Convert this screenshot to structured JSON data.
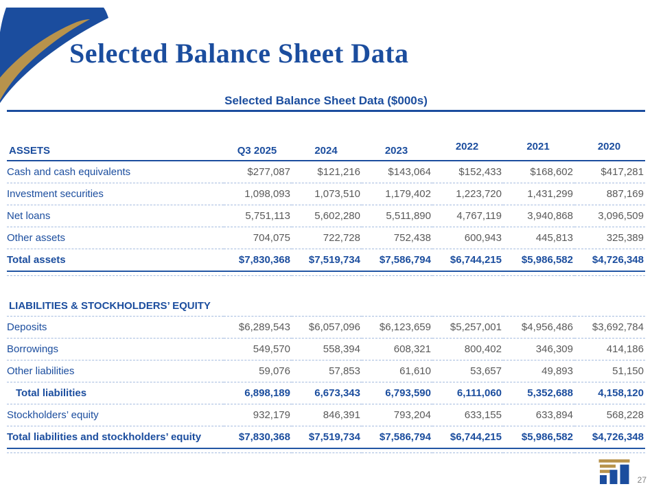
{
  "title": "Selected Balance Sheet Data",
  "page_number": "27",
  "colors": {
    "primary_blue": "#1B4D9E",
    "gold": "#B8934C",
    "value_gray": "#595959",
    "dashed_rule": "#A4BBDF"
  },
  "icons": {
    "corner_decoration": "swoosh-ribbon",
    "logo": "bar-chart-columns-logo"
  },
  "table": {
    "caption": "Selected Balance Sheet Data ($000s)",
    "columns": [
      "Q3 2025",
      "2024",
      "2023",
      "2022",
      "2021",
      "2020"
    ],
    "sections": [
      {
        "name": "ASSETS",
        "rows": [
          {
            "label": "Cash and cash equivalents",
            "values": [
              "$277,087",
              "$121,216",
              "$143,064",
              "$152,433",
              "$168,602",
              "$417,281"
            ]
          },
          {
            "label": "Investment securities",
            "values": [
              "1,098,093",
              "1,073,510",
              "1,179,402",
              "1,223,720",
              "1,431,299",
              "887,169"
            ]
          },
          {
            "label": "Net loans",
            "values": [
              "5,751,113",
              "5,602,280",
              "5,511,890",
              "4,767,119",
              "3,940,868",
              "3,096,509"
            ]
          },
          {
            "label": "Other assets",
            "values": [
              "704,075",
              "722,728",
              "752,438",
              "600,943",
              "445,813",
              "325,389"
            ]
          },
          {
            "label": "Total assets",
            "values": [
              "$7,830,368",
              "$7,519,734",
              "$7,586,794",
              "$6,744,215",
              "$5,986,582",
              "$4,726,348"
            ],
            "total": true,
            "grand": true
          }
        ]
      },
      {
        "name": "LIABILITIES & STOCKHOLDERS’ EQUITY",
        "rows": [
          {
            "label": "Deposits",
            "values": [
              "$6,289,543",
              "$6,057,096",
              "$6,123,659",
              "$5,257,001",
              "$4,956,486",
              "$3,692,784"
            ]
          },
          {
            "label": "Borrowings",
            "values": [
              "549,570",
              "558,394",
              "608,321",
              "800,402",
              "346,309",
              "414,186"
            ]
          },
          {
            "label": "Other liabilities",
            "values": [
              "59,076",
              "57,853",
              "61,610",
              "53,657",
              "49,893",
              "51,150"
            ]
          },
          {
            "label": "Total liabilities",
            "values": [
              "6,898,189",
              "6,673,343",
              "6,793,590",
              "6,111,060",
              "5,352,688",
              "4,158,120"
            ],
            "total": true,
            "indent": true
          },
          {
            "label": "Stockholders’ equity",
            "values": [
              "932,179",
              "846,391",
              "793,204",
              "633,155",
              "633,894",
              "568,228"
            ]
          },
          {
            "label": "Total liabilities and stockholders’ equity",
            "values": [
              "$7,830,368",
              "$7,519,734",
              "$7,586,794",
              "$6,744,215",
              "$5,986,582",
              "$4,726,348"
            ],
            "total": true,
            "grand": true
          }
        ]
      }
    ]
  }
}
